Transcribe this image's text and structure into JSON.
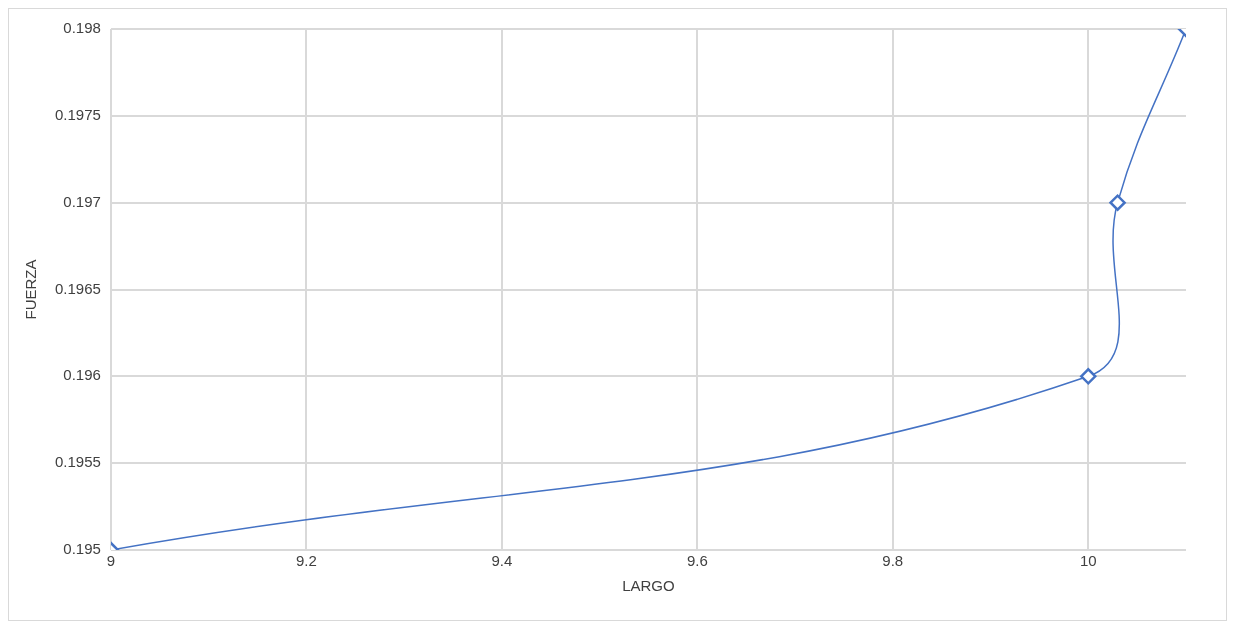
{
  "chart_data": {
    "type": "line",
    "xlabel": "LARGO",
    "ylabel": "FUERZA",
    "x": [
      9,
      10,
      10.03,
      10.1
    ],
    "series": [
      {
        "color": "#4472c4",
        "values": [
          0.195,
          0.196,
          0.197,
          0.198
        ]
      }
    ],
    "xlim": [
      9,
      10.1
    ],
    "xticks": [
      9,
      9.2,
      9.4,
      9.6,
      9.8,
      10
    ],
    "ylim": [
      0.195,
      0.198
    ],
    "yticks": [
      0.195,
      0.1955,
      0.196,
      0.1965,
      0.197,
      0.1975,
      0.198
    ],
    "grid": true,
    "legend": false,
    "marker": "diamond",
    "line_style": "solid"
  }
}
